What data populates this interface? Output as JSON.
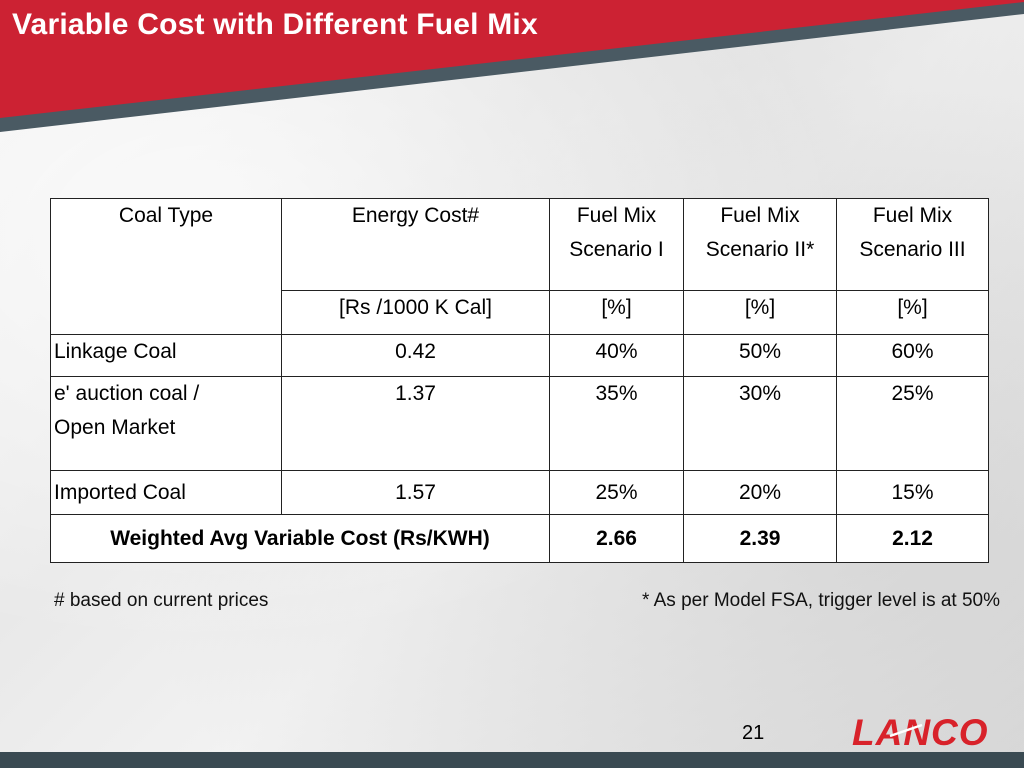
{
  "slide": {
    "title": "Variable Cost with Different Fuel Mix",
    "page_number": "21",
    "logo_text": "LANCO",
    "colors": {
      "banner_red": "#cc2233",
      "banner_slate": "#4a5a63",
      "logo_red": "#d8222a"
    }
  },
  "table": {
    "headers": {
      "coal_type": "Coal Type",
      "energy_cost": "Energy Cost#",
      "scenario1_line1": "Fuel Mix",
      "scenario1_line2": "Scenario I",
      "scenario2_line1": "Fuel Mix",
      "scenario2_line2": "Scenario II*",
      "scenario3_line1": "Fuel Mix",
      "scenario3_line2": "Scenario III"
    },
    "units": {
      "energy_cost": "[Rs /1000 K Cal]",
      "scenario1": "[%]",
      "scenario2": "[%]",
      "scenario3": "[%]"
    },
    "rows": [
      {
        "type": "Linkage Coal",
        "cost": "0.42",
        "s1": "40%",
        "s2": "50%",
        "s3": "60%"
      },
      {
        "type_line1": "e' auction coal /",
        "type_line2": "Open Market",
        "cost": "1.37",
        "s1": "35%",
        "s2": "30%",
        "s3": "25%"
      },
      {
        "type": "Imported Coal",
        "cost": "1.57",
        "s1": "25%",
        "s2": "20%",
        "s3": "15%"
      }
    ],
    "total": {
      "label": "Weighted Avg Variable Cost (Rs/KWH)",
      "s1": "2.66",
      "s2": "2.39",
      "s3": "2.12"
    }
  },
  "notes": {
    "left": "# based on current prices",
    "right": "* As per Model FSA, trigger level is at 50%"
  }
}
